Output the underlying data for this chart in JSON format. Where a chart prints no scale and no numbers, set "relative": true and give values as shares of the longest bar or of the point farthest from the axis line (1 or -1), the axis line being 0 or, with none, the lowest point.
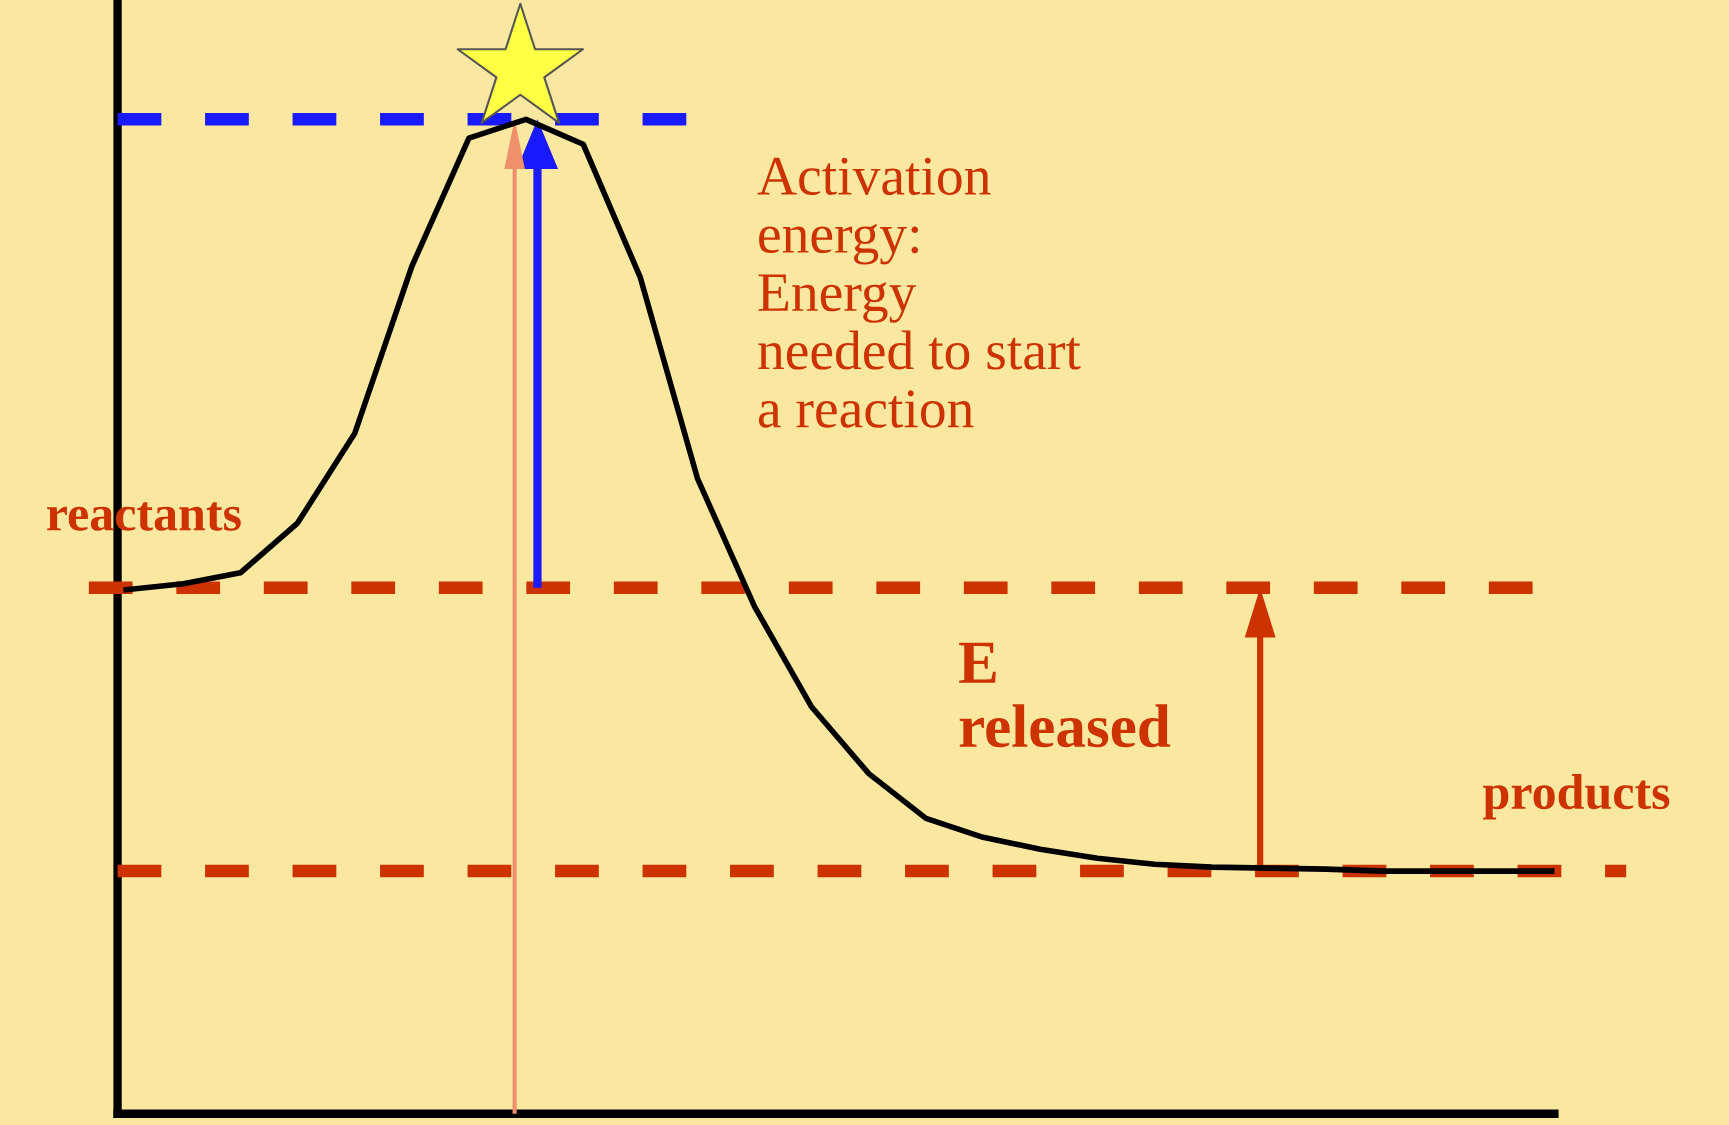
{
  "chart_data": {
    "type": "line",
    "relative": true,
    "categories": [
      null,
      null,
      null,
      null,
      null,
      null,
      null,
      null,
      null,
      null,
      null,
      null,
      null,
      null,
      null,
      null,
      null,
      null,
      null,
      null,
      null,
      null,
      null,
      null,
      null,
      null
    ],
    "series": [
      {
        "color": "#000000",
        "values": [
          0.527,
          0.533,
          0.544,
          0.594,
          0.684,
          0.852,
          0.981,
          1.0,
          0.975,
          0.841,
          0.639,
          0.51,
          0.409,
          0.342,
          0.297,
          0.278,
          0.266,
          0.257,
          0.251,
          0.248,
          0.247,
          0.246,
          0.244,
          0.244,
          0.244,
          0.244
        ]
      }
    ],
    "ref_lines": [
      {
        "axis": "y",
        "value": 1.0,
        "color": "#1a1aff",
        "line_style": "dashed"
      },
      {
        "axis": "y",
        "value": 0.529,
        "color": "#cc3300",
        "line_style": "dashed"
      },
      {
        "axis": "y",
        "value": 0.244,
        "color": "#cc3300",
        "line_style": "dashed"
      }
    ],
    "annotations": [
      "Activation energy: Energy needed to start a reaction",
      "reactants",
      "E released",
      "products"
    ],
    "grid": false,
    "legend": false,
    "marker": "none",
    "line_style": "solid"
  }
}
